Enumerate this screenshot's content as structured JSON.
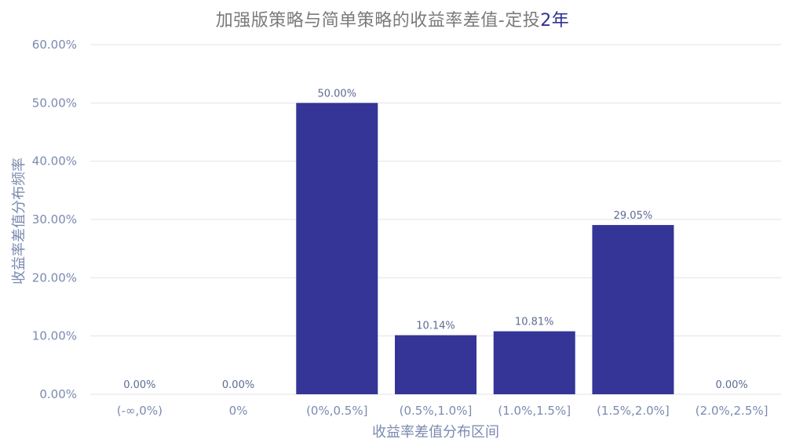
{
  "chart_data": {
    "type": "bar",
    "title_main": "加强版策略与简单策略的收益率差值-定投",
    "title_accent": "2年",
    "xlabel": "收益率差值分布区间",
    "ylabel": "收益率差值分布频率",
    "categories": [
      "(-∞,0%)",
      "0%",
      "(0%,0.5%]",
      "(0.5%,1.0%]",
      "(1.0%,1.5%]",
      "(1.5%,2.0%]",
      "(2.0%,2.5%]"
    ],
    "values": [
      0.0,
      0.0,
      50.0,
      10.14,
      10.81,
      29.05,
      0.0
    ],
    "value_labels": [
      "0.00%",
      "0.00%",
      "50.00%",
      "10.14%",
      "10.81%",
      "29.05%",
      "0.00%"
    ],
    "ylim": [
      0,
      60
    ],
    "yticks": [
      0,
      10,
      20,
      30,
      40,
      50,
      60
    ],
    "ytick_labels": [
      "0.00%",
      "10.00%",
      "20.00%",
      "30.00%",
      "40.00%",
      "50.00%",
      "60.00%"
    ],
    "grid": true,
    "legend": "none"
  },
  "colors": {
    "bar": "#343597",
    "grid": "#e3e3e3",
    "axis_text": "#7b8ab0",
    "data_label_text": "#5d6b94",
    "title_text": "#7a7a7a",
    "title_accent": "#2f3194"
  }
}
